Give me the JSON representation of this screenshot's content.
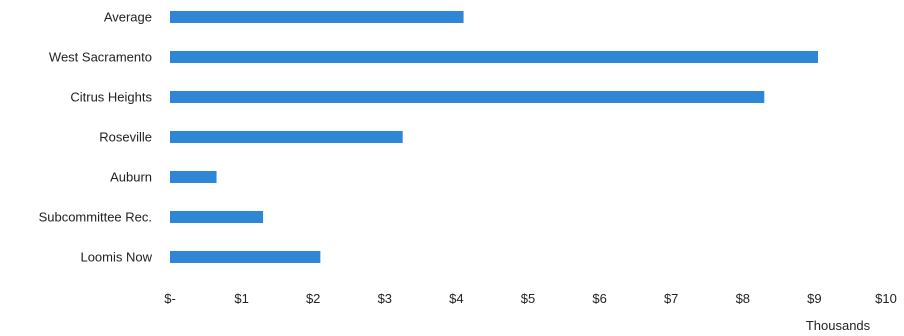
{
  "chart_data": {
    "type": "bar",
    "orientation": "horizontal",
    "categories": [
      "Average",
      "West Sacramento",
      "Citrus Heights",
      "Roseville",
      "Auburn",
      "Subcommittee Rec.",
      "Loomis Now"
    ],
    "values": [
      4.1,
      9.05,
      8.3,
      3.25,
      0.65,
      1.3,
      2.1
    ],
    "x_ticks": [
      "$-",
      "$1",
      "$2",
      "$3",
      "$4",
      "$5",
      "$6",
      "$7",
      "$8",
      "$9",
      "$10"
    ],
    "xlim": [
      0,
      10
    ],
    "xlabel": "Thousands",
    "ylabel": "",
    "title": "",
    "grid": false,
    "legend": "none",
    "bar_color": "#2f86d6"
  }
}
